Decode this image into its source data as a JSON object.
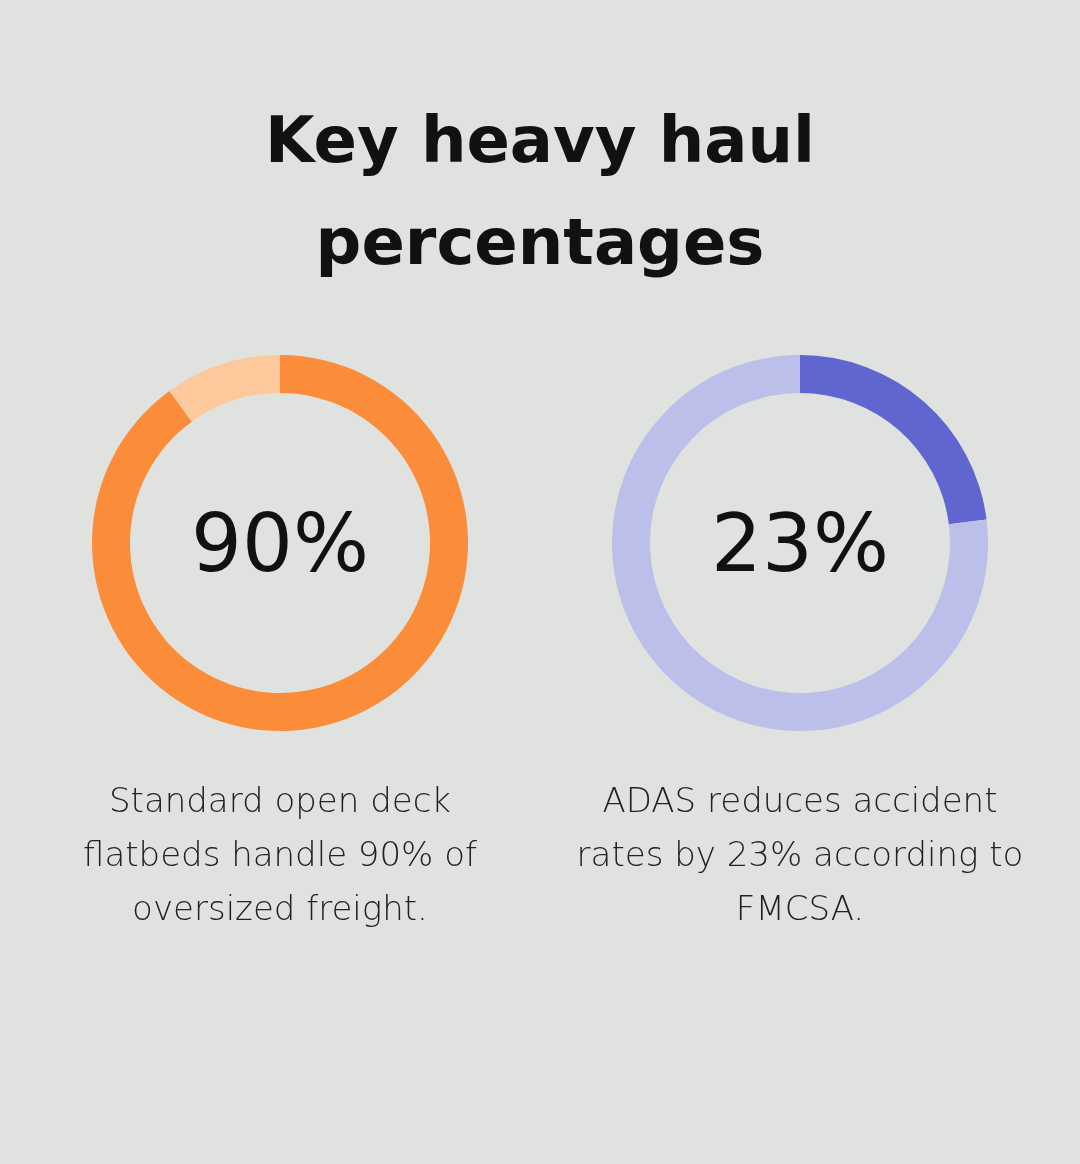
{
  "chart_data": [
    {
      "type": "donut",
      "title": "Key heavy haul percentages",
      "categories": [
        null,
        null
      ],
      "values": [
        90,
        10
      ],
      "colors": [
        "#fb8c3a",
        "#fdc99c"
      ],
      "annotations": [
        "90%",
        "Standard open deck flatbeds handle 90% of oversized freight."
      ]
    },
    {
      "type": "donut",
      "categories": [
        null,
        null
      ],
      "values": [
        23,
        77
      ],
      "colors": [
        "#6165cf",
        "#bcbfea"
      ],
      "annotations": [
        "23%",
        "ADAS reduces accident rates by 23% according to FMCSA."
      ]
    }
  ]
}
